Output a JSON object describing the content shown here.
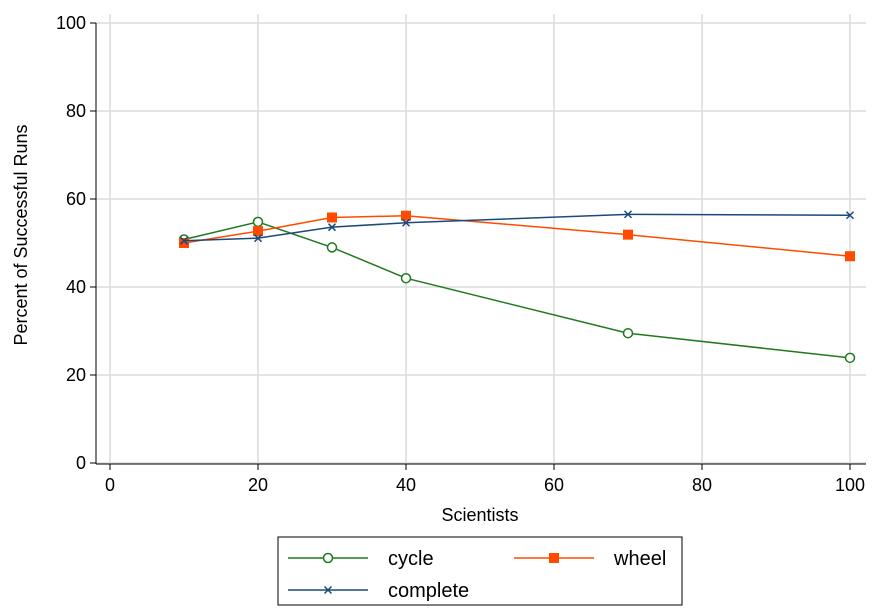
{
  "chart_data": {
    "type": "line",
    "title": "",
    "xlabel": "Scientists",
    "ylabel": "Percent of Successful Runs",
    "xlim": [
      0,
      100
    ],
    "ylim": [
      0,
      100
    ],
    "xticks": [
      0,
      20,
      40,
      60,
      80,
      100
    ],
    "yticks": [
      0,
      20,
      40,
      60,
      80,
      100
    ],
    "grid": true,
    "legend_position": "bottom",
    "x": [
      10,
      20,
      30,
      40,
      70,
      100
    ],
    "series": [
      {
        "name": "cycle",
        "values": [
          50.8,
          54.8,
          49.0,
          42.0,
          29.5,
          23.9
        ],
        "color": "#1f7a1f",
        "marker": "circle-open"
      },
      {
        "name": "wheel",
        "values": [
          50.0,
          52.7,
          55.8,
          56.2,
          51.9,
          47.0
        ],
        "color": "#ff4a00",
        "marker": "square"
      },
      {
        "name": "complete",
        "values": [
          50.5,
          51.1,
          53.6,
          54.6,
          56.5,
          56.3
        ],
        "color": "#1a4a7a",
        "marker": "x"
      }
    ]
  }
}
